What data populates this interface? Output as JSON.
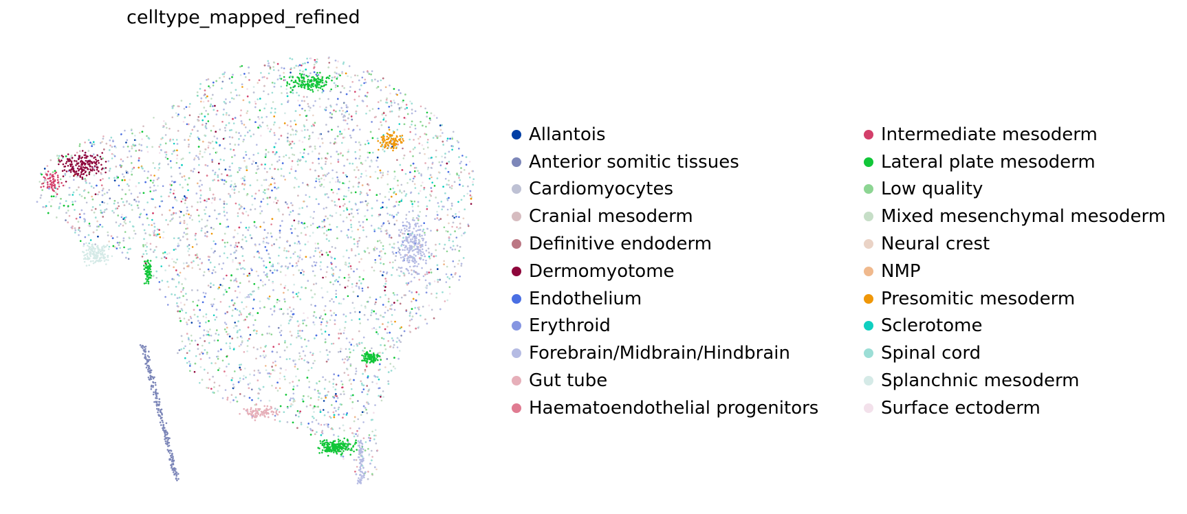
{
  "chart_data": {
    "type": "scatter",
    "title": "celltype_mapped_refined",
    "xlabel": "",
    "ylabel": "",
    "axes_visible": false,
    "grid": false,
    "legend_placement": "right, two columns",
    "legend": [
      {
        "name": "Allantois",
        "color": "#023fa5"
      },
      {
        "name": "Anterior somitic tissues",
        "color": "#7d87b9"
      },
      {
        "name": "Cardiomyocytes",
        "color": "#bec1d4"
      },
      {
        "name": "Cranial mesoderm",
        "color": "#d6bcc0"
      },
      {
        "name": "Definitive endoderm",
        "color": "#bb7784"
      },
      {
        "name": "Dermomyotome",
        "color": "#8e063b"
      },
      {
        "name": "Endothelium",
        "color": "#4a6fe3"
      },
      {
        "name": "Erythroid",
        "color": "#8595e1"
      },
      {
        "name": "Forebrain/Midbrain/Hindbrain",
        "color": "#b5bbe3"
      },
      {
        "name": "Gut tube",
        "color": "#e6afb9"
      },
      {
        "name": "Haematoendothelial progenitors",
        "color": "#e07b91"
      },
      {
        "name": "Intermediate mesoderm",
        "color": "#d33f6a"
      },
      {
        "name": "Lateral plate mesoderm",
        "color": "#11c638"
      },
      {
        "name": "Low quality",
        "color": "#8dd593"
      },
      {
        "name": "Mixed mesenchymal mesoderm",
        "color": "#c6dec7"
      },
      {
        "name": "Neural crest",
        "color": "#ead3c6"
      },
      {
        "name": "NMP",
        "color": "#f0b98d"
      },
      {
        "name": "Presomitic mesoderm",
        "color": "#ef9708"
      },
      {
        "name": "Sclerotome",
        "color": "#0fcfc0"
      },
      {
        "name": "Spinal cord",
        "color": "#9cded6"
      },
      {
        "name": "Splanchnic mesoderm",
        "color": "#d5eae7"
      },
      {
        "name": "Surface ectoderm",
        "color": "#f3e1eb"
      }
    ]
  }
}
